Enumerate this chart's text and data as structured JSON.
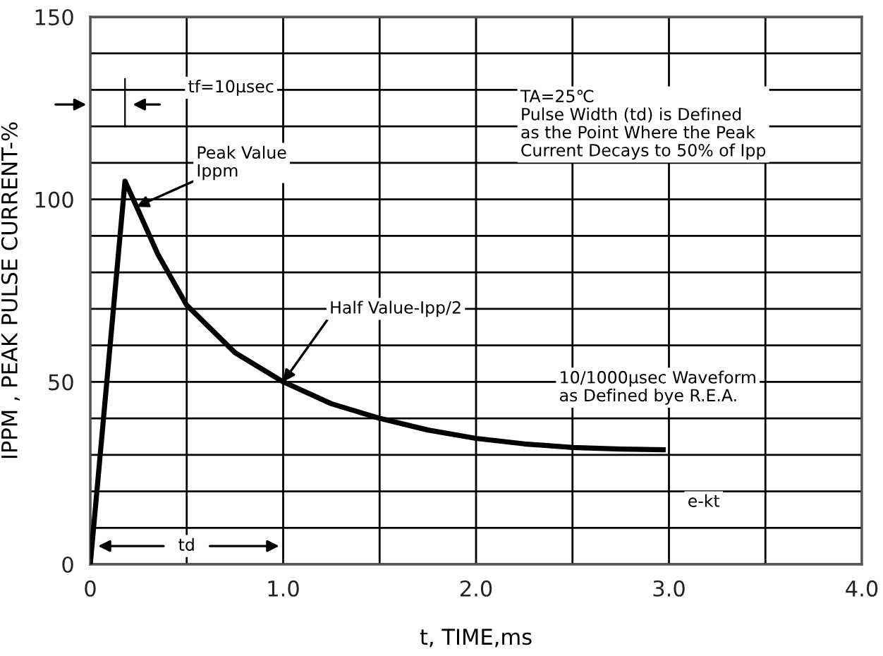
{
  "chart_data": {
    "type": "line",
    "xlabel": "t, TIME,ms",
    "ylabel": "IPPM , PEAK PULSE CURRENT-%",
    "x": [
      0,
      0.18,
      0.24,
      0.35,
      0.5,
      0.75,
      1.0,
      1.25,
      1.5,
      1.75,
      2.0,
      2.25,
      2.5,
      2.75,
      2.97
    ],
    "series": [
      {
        "color": "#000000",
        "values": [
          0,
          105,
          98,
          85,
          71,
          58,
          50,
          44,
          40,
          36.8,
          34.5,
          33,
          32,
          31.6,
          31.4
        ]
      }
    ],
    "xlim": [
      0,
      4
    ],
    "ylim": [
      0,
      150
    ],
    "xticks": [
      {
        "value": 0,
        "label": "0"
      },
      {
        "value": 0.5,
        "label": null
      },
      {
        "value": 1,
        "label": "1.0"
      },
      {
        "value": 1.5,
        "label": null
      },
      {
        "value": 2,
        "label": "2.0"
      },
      {
        "value": 2.5,
        "label": null
      },
      {
        "value": 3,
        "label": "3.0"
      },
      {
        "value": 3.5,
        "label": null
      },
      {
        "value": 4,
        "label": "4.0"
      }
    ],
    "yticks": [
      0,
      {
        "value": 10,
        "label": null
      },
      {
        "value": 20,
        "label": null
      },
      {
        "value": 30,
        "label": null
      },
      {
        "value": 40,
        "label": null
      },
      50,
      {
        "value": 60,
        "label": null
      },
      {
        "value": 70,
        "label": null
      },
      {
        "value": 80,
        "label": null
      },
      {
        "value": 90,
        "label": null
      },
      100,
      {
        "value": 110,
        "label": null
      },
      {
        "value": 120,
        "label": null
      },
      {
        "value": 130,
        "label": null
      },
      {
        "value": 140,
        "label": null
      },
      150
    ],
    "grid": true,
    "line_style": "solid",
    "marker": "none",
    "annotations": [
      "tf=10μsec",
      {
        "text": "Peak Value\nIppm",
        "x": 0.24,
        "y": 98
      },
      {
        "text": "Half Value-Ipp/2",
        "x": 1.0,
        "y": 50
      },
      "TA=25℃\nPulse Width (td) is Defined\nas the Point Where the Peak\nCurrent Decays to 50% of Ipp",
      "10/1000μsec Waveform\nas Defined bye R.E.A.",
      "e-kt",
      "td"
    ]
  }
}
